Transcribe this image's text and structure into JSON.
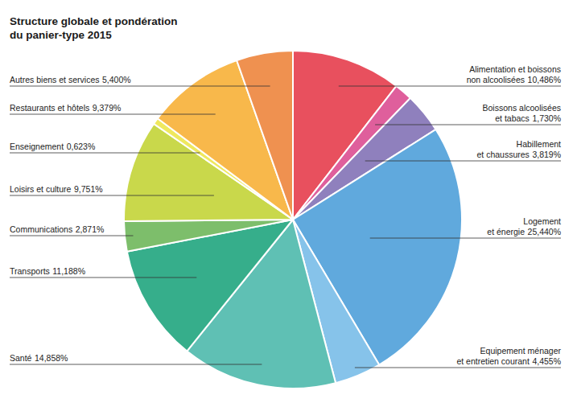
{
  "chart_data": {
    "type": "pie",
    "title": "Structure globale et pondération du panier-type 2015",
    "categories": [
      "Alimentation et boissons non alcoolisées",
      "Boissons alcoolisées et tabacs",
      "Habillement et chaussures",
      "Logement et énergie",
      "Equipement ménager et entretien courant",
      "Santé",
      "Transports",
      "Communications",
      "Loisirs et culture",
      "Enseignement",
      "Restaurants et hôtels",
      "Autres biens et services"
    ],
    "values": [
      10.486,
      1.73,
      3.819,
      25.44,
      4.455,
      14.858,
      11.188,
      2.871,
      9.751,
      0.623,
      9.379,
      5.4
    ],
    "value_labels": [
      "10,486%",
      "1,730%",
      "3,819%",
      "25,440%",
      "4,455%",
      "14,858%",
      "11,188%",
      "2,871%",
      "9,751%",
      "0,623%",
      "9,379%",
      "5,400%"
    ],
    "colors": [
      "#e8505e",
      "#df5f9c",
      "#8f80bd",
      "#60a9dd",
      "#86c3ea",
      "#5fc0b4",
      "#36ae8b",
      "#7dbe6b",
      "#c9d84b",
      "#efe85e",
      "#f8b84b",
      "#ef9150"
    ],
    "data_labels": true
  }
}
